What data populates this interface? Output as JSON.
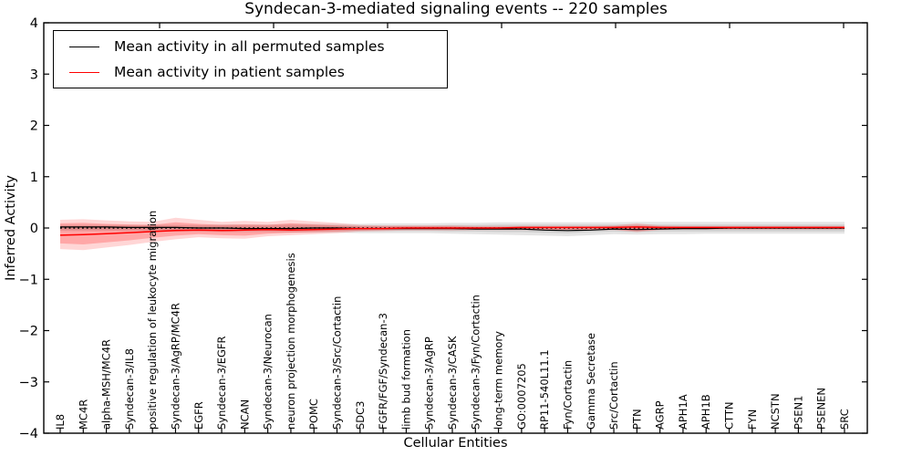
{
  "chart_data": {
    "type": "line",
    "title": "Syndecan-3-mediated signaling events -- 220 samples",
    "xlabel": "Cellular Entities",
    "ylabel": "Inferred Activity",
    "ylim": [
      -4,
      4
    ],
    "yticks": [
      4,
      3,
      2,
      1,
      0,
      -1,
      -2,
      -3,
      -4
    ],
    "ytick_labels": [
      "4",
      "3",
      "2",
      "1",
      "0",
      "−1",
      "−2",
      "−3",
      "−4"
    ],
    "grid": false,
    "legend_position": "upper left",
    "legend": [
      {
        "label": "Mean activity in all permuted samples",
        "color": "#000000"
      },
      {
        "label": "Mean activity in patient samples",
        "color": "#ff0000"
      }
    ],
    "categories": [
      "IL8",
      "MC4R",
      "alpha-MSH/MC4R",
      "Syndecan-3/IL8",
      "positive regulation of leukocyte migration",
      "Syndecan-3/AgRP/MC4R",
      "EGFR",
      "Syndecan-3/EGFR",
      "NCAN",
      "Syndecan-3/Neurocan",
      "neuron projection morphogenesis",
      "POMC",
      "Syndecan-3/Src/Cortactin",
      "SDC3",
      "FGFR/FGF/Syndecan-3",
      "limb bud formation",
      "Syndecan-3/AgRP",
      "Syndecan-3/CASK",
      "Syndecan-3/Fyn/Cortactin",
      "long-term memory",
      "GO:0007205",
      "RP11-540L11.1",
      "Fyn/Cortactin",
      "Gamma Secretase",
      "Src/Cortactin",
      "PTN",
      "AGRP",
      "APH1A",
      "APH1B",
      "CTTN",
      "FYN",
      "NCSTN",
      "PSEN1",
      "PSENEN",
      "SRC"
    ],
    "zero_line": {
      "value": 0,
      "color": "#000000",
      "style": "dotted"
    },
    "series": [
      {
        "name": "Mean activity in all permuted samples",
        "color": "#000000",
        "width": 1.2,
        "values": [
          0.02,
          0.02,
          0.02,
          0.01,
          0.01,
          0.01,
          0.0,
          0.0,
          -0.01,
          -0.01,
          -0.01,
          0.0,
          0.0,
          -0.01,
          -0.01,
          -0.01,
          -0.01,
          -0.01,
          -0.02,
          -0.02,
          -0.02,
          -0.04,
          -0.05,
          -0.04,
          -0.02,
          -0.03,
          -0.02,
          -0.01,
          -0.01,
          0.0,
          0.0,
          0.0,
          0.0,
          0.0,
          0.0
        ]
      },
      {
        "name": "Mean activity in patient samples",
        "color": "#ff0000",
        "width": 1.5,
        "values": [
          -0.14,
          -0.13,
          -0.11,
          -0.09,
          -0.07,
          -0.05,
          -0.04,
          -0.05,
          -0.04,
          -0.03,
          -0.04,
          -0.03,
          -0.02,
          -0.01,
          -0.01,
          0.0,
          0.0,
          0.0,
          0.0,
          0.0,
          0.01,
          0.01,
          0.01,
          0.01,
          0.01,
          0.02,
          0.01,
          0.01,
          0.01,
          0.01,
          0.01,
          0.01,
          0.01,
          0.01,
          0.01
        ]
      }
    ],
    "bands": [
      {
        "name": "permuted-activity-range",
        "color": "#999999",
        "opacity": 0.25,
        "upper": [
          0.06,
          0.06,
          0.06,
          0.06,
          0.06,
          0.06,
          0.06,
          0.07,
          0.07,
          0.07,
          0.08,
          0.08,
          0.08,
          0.08,
          0.09,
          0.09,
          0.09,
          0.1,
          0.1,
          0.11,
          0.11,
          0.11,
          0.11,
          0.11,
          0.11,
          0.12,
          0.12,
          0.12,
          0.12,
          0.12,
          0.12,
          0.12,
          0.12,
          0.12,
          0.12
        ],
        "lower": [
          -0.06,
          -0.06,
          -0.06,
          -0.06,
          -0.07,
          -0.07,
          -0.07,
          -0.08,
          -0.08,
          -0.08,
          -0.09,
          -0.09,
          -0.09,
          -0.1,
          -0.1,
          -0.1,
          -0.1,
          -0.11,
          -0.12,
          -0.13,
          -0.14,
          -0.15,
          -0.16,
          -0.14,
          -0.12,
          -0.13,
          -0.12,
          -0.12,
          -0.11,
          -0.11,
          -0.11,
          -0.11,
          -0.11,
          -0.11,
          -0.11
        ]
      },
      {
        "name": "permuted-activity-core",
        "color": "#999999",
        "opacity": 0.25,
        "upper": [
          0.04,
          0.04,
          0.04,
          0.04,
          0.04,
          0.04,
          0.04,
          0.04,
          0.04,
          0.04,
          0.05,
          0.05,
          0.05,
          0.05,
          0.05,
          0.05,
          0.05,
          0.06,
          0.06,
          0.07,
          0.07,
          0.07,
          0.07,
          0.07,
          0.07,
          0.07,
          0.07,
          0.07,
          0.07,
          0.07,
          0.07,
          0.07,
          0.07,
          0.07,
          0.07
        ],
        "lower": [
          -0.04,
          -0.04,
          -0.04,
          -0.04,
          -0.04,
          -0.04,
          -0.04,
          -0.05,
          -0.05,
          -0.05,
          -0.05,
          -0.05,
          -0.05,
          -0.06,
          -0.06,
          -0.06,
          -0.06,
          -0.07,
          -0.07,
          -0.08,
          -0.08,
          -0.09,
          -0.1,
          -0.08,
          -0.07,
          -0.08,
          -0.07,
          -0.07,
          -0.07,
          -0.07,
          -0.07,
          -0.07,
          -0.07,
          -0.07,
          -0.07
        ]
      },
      {
        "name": "patient-activity-range",
        "color": "#ff1a1a",
        "opacity": 0.18,
        "upper": [
          0.16,
          0.17,
          0.15,
          0.13,
          0.12,
          0.2,
          0.16,
          0.12,
          0.14,
          0.12,
          0.16,
          0.13,
          0.1,
          0.06,
          0.05,
          0.05,
          0.05,
          0.05,
          0.04,
          0.04,
          0.04,
          0.04,
          0.04,
          0.04,
          0.05,
          0.09,
          0.05,
          0.04,
          0.04,
          0.04,
          0.04,
          0.04,
          0.04,
          0.04,
          0.04
        ],
        "lower": [
          -0.41,
          -0.43,
          -0.38,
          -0.33,
          -0.27,
          -0.22,
          -0.18,
          -0.2,
          -0.21,
          -0.16,
          -0.14,
          -0.12,
          -0.1,
          -0.07,
          -0.06,
          -0.05,
          -0.05,
          -0.05,
          -0.04,
          -0.04,
          -0.04,
          -0.04,
          -0.04,
          -0.04,
          -0.04,
          -0.08,
          -0.04,
          -0.03,
          -0.03,
          -0.03,
          -0.03,
          -0.03,
          -0.03,
          -0.03,
          -0.03
        ]
      },
      {
        "name": "patient-activity-core",
        "color": "#ff1a1a",
        "opacity": 0.25,
        "upper": [
          0.09,
          0.1,
          0.08,
          0.07,
          0.06,
          0.11,
          0.08,
          0.06,
          0.07,
          0.06,
          0.09,
          0.07,
          0.05,
          0.03,
          0.03,
          0.03,
          0.03,
          0.03,
          0.02,
          0.02,
          0.02,
          0.02,
          0.02,
          0.02,
          0.03,
          0.05,
          0.03,
          0.02,
          0.02,
          0.02,
          0.02,
          0.02,
          0.02,
          0.02,
          0.02
        ],
        "lower": [
          -0.3,
          -0.32,
          -0.28,
          -0.24,
          -0.19,
          -0.15,
          -0.12,
          -0.14,
          -0.15,
          -0.11,
          -0.09,
          -0.08,
          -0.07,
          -0.05,
          -0.04,
          -0.03,
          -0.03,
          -0.03,
          -0.03,
          -0.03,
          -0.03,
          -0.03,
          -0.03,
          -0.03,
          -0.03,
          -0.06,
          -0.03,
          -0.02,
          -0.02,
          -0.02,
          -0.02,
          -0.02,
          -0.02,
          -0.02,
          -0.02
        ]
      }
    ]
  }
}
